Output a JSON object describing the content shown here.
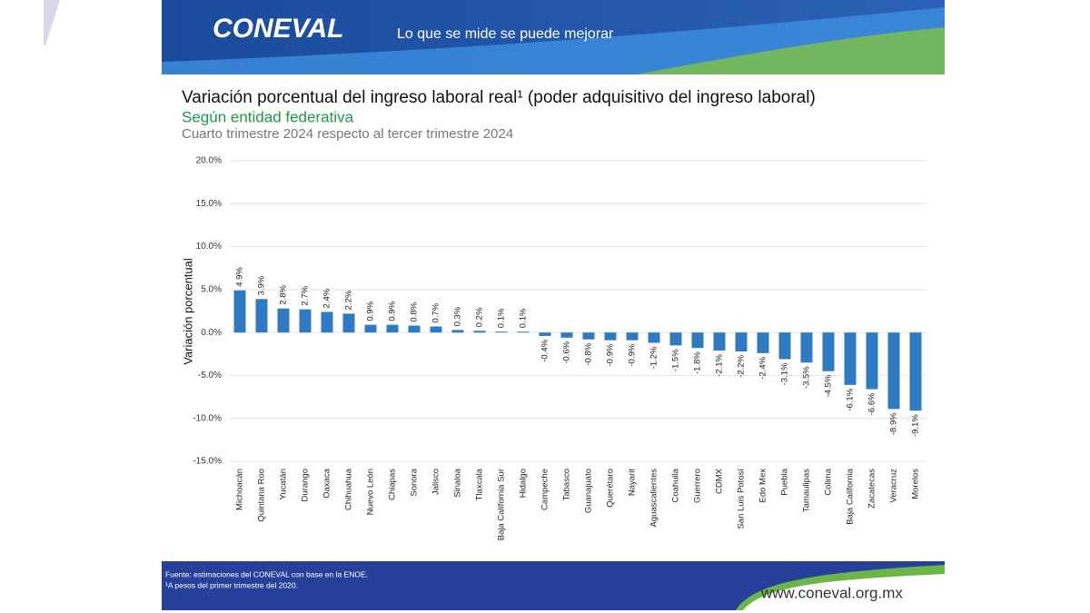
{
  "header": {
    "logo": "CONEVAL",
    "tagline": "Lo que se mide se puede mejorar"
  },
  "chart_data": {
    "type": "bar",
    "title": "Variación porcentual del ingreso laboral real¹ (poder adquisitivo del ingreso laboral)",
    "subtitle": "Según entidad federativa",
    "subtitle2": "Cuarto trimestre 2024 respecto al tercer trimestre 2024",
    "y_label": "Variación porcentual",
    "categories": [
      "Michoacán",
      "Quintana Roo",
      "Yucatán",
      "Durango",
      "Oaxaca",
      "Chihuahua",
      "Nuevo León",
      "Chiapas",
      "Sonora",
      "Jalisco",
      "Sinaloa",
      "Tlaxcala",
      "Baja California Sur",
      "Hidalgo",
      "Campeche",
      "Tabasco",
      "Guanajuato",
      "Querétaro",
      "Nayarit",
      "Aguascalientes",
      "Coahuila",
      "Guerrero",
      "CDMX",
      "San Luis Potosí",
      "Edo Mex",
      "Puebla",
      "Tamaulipas",
      "Colima",
      "Baja California",
      "Zacatecas",
      "Veracruz",
      "Morelos"
    ],
    "values": [
      4.9,
      3.9,
      2.8,
      2.7,
      2.4,
      2.2,
      0.9,
      0.9,
      0.8,
      0.7,
      0.3,
      0.2,
      0.1,
      0.1,
      -0.4,
      -0.6,
      -0.8,
      -0.9,
      -0.9,
      -1.2,
      -1.5,
      -1.8,
      -2.1,
      -2.2,
      -2.4,
      -3.1,
      -3.5,
      -4.5,
      -6.1,
      -6.6,
      -8.9,
      -9.1
    ],
    "value_labels": [
      "4.9%",
      "3.9%",
      "2.8%",
      "2.7%",
      "2.4%",
      "2.2%",
      "0.9%",
      "0.9%",
      "0.8%",
      "0.7%",
      "0.3%",
      "0.2%",
      "0.1%",
      "0.1%",
      "-0.4%",
      "-0.6%",
      "-0.8%",
      "-0.9%",
      "-0.9%",
      "-1.2%",
      "-1.5%",
      "-1.8%",
      "-2.1%",
      "-2.2%",
      "-2.4%",
      "-3.1%",
      "-3.5%",
      "-4.5%",
      "-6.1%",
      "-6.6%",
      "-8.9%",
      "-9.1%"
    ],
    "color": "#2e7bc4",
    "ylim": [
      -15,
      20
    ],
    "yticks": [
      {
        "value": -15,
        "label": "-15.0%"
      },
      {
        "value": -10,
        "label": "-10.0%"
      },
      {
        "value": -5,
        "label": "-5.0%"
      },
      {
        "value": 0,
        "label": "0.0%"
      },
      {
        "value": 5,
        "label": "5.0%"
      },
      {
        "value": 10,
        "label": "10.0%"
      },
      {
        "value": 15,
        "label": "15.0%"
      },
      {
        "value": 20,
        "label": "20.0%"
      }
    ],
    "grid": true
  },
  "footer": {
    "source": "Fuente: estimaciones del CONEVAL con base en la ENOE.",
    "note": "¹A pesos del primer trimestre del 2020.",
    "url": "www.coneval.org.mx"
  }
}
